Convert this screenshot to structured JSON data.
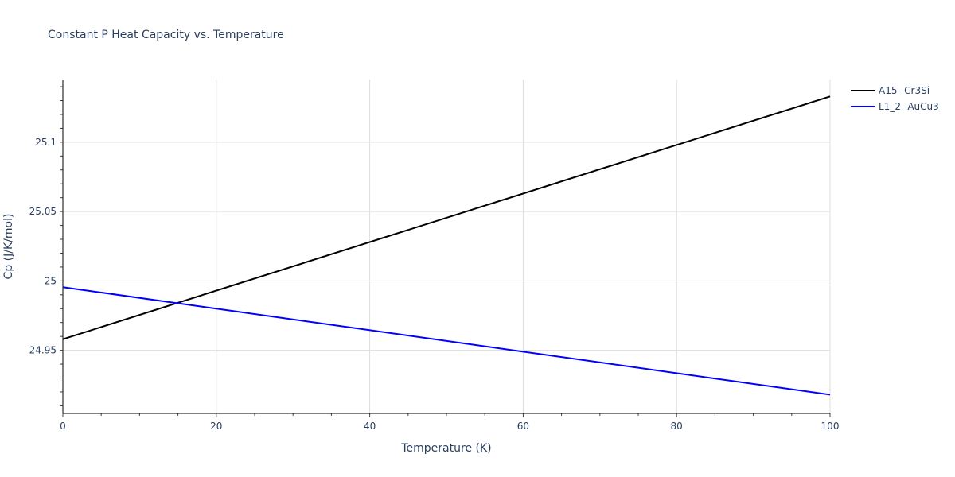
{
  "title": "Constant P Heat Capacity vs. Temperature",
  "chart_data": {
    "type": "line",
    "title": "Constant P Heat Capacity vs. Temperature",
    "xlabel": "Temperature (K)",
    "ylabel": "Cp (J/K/mol)",
    "xlim": [
      0,
      100
    ],
    "ylim": [
      24.9045,
      25.1452
    ],
    "x_ticks": [
      0,
      20,
      40,
      60,
      80,
      100
    ],
    "x_tick_labels": [
      "0",
      "20",
      "40",
      "60",
      "80",
      "100"
    ],
    "y_ticks": [
      24.95,
      25,
      25.05,
      25.1
    ],
    "y_tick_labels": [
      "24.95",
      "25",
      "25.05",
      "25.1"
    ],
    "grid": true,
    "legend_position": "top-right-outside",
    "series": [
      {
        "name": "A15--Cr3Si",
        "color": "#000000",
        "x": [
          0,
          100
        ],
        "values": [
          24.958,
          25.133
        ]
      },
      {
        "name": "L1_2--AuCu3",
        "color": "#0000ff",
        "x": [
          0,
          100
        ],
        "values": [
          24.9955,
          24.918
        ]
      }
    ]
  },
  "legend": {
    "items": [
      {
        "label": "A15--Cr3Si",
        "color": "#000000"
      },
      {
        "label": "L1_2--AuCu3",
        "color": "#0000ff"
      }
    ]
  }
}
